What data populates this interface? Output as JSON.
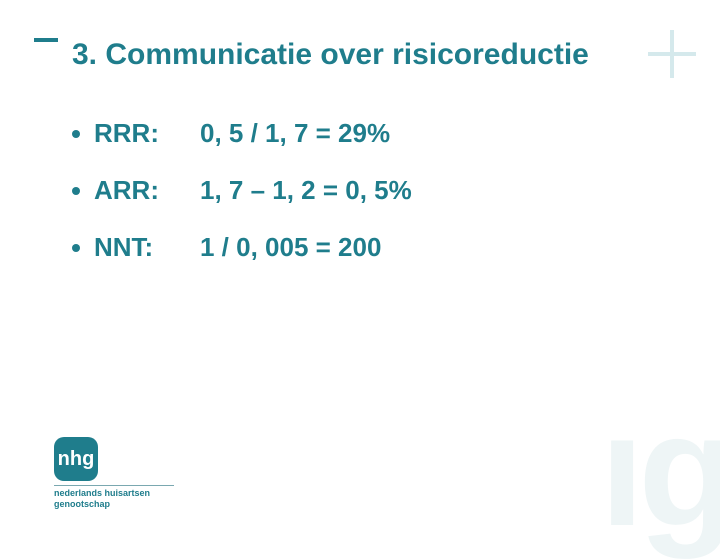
{
  "colors": {
    "accent": "#1f7d8c",
    "light_accent": "#d5e9ec",
    "watermark": "#eef5f6",
    "background": "#ffffff"
  },
  "title": "3. Communicatie over risicoreductie",
  "bullets": [
    {
      "label": "RRR:",
      "value": "0, 5 / 1, 7 = 29%"
    },
    {
      "label": "ARR:",
      "value": "1, 7 – 1, 2 = 0, 5%"
    },
    {
      "label": "NNT:",
      "value": "1 / 0, 005 = 200"
    }
  ],
  "logo": {
    "mark": "nhg",
    "line1": "nederlands huisartsen",
    "line2": "genootschap"
  },
  "watermark": "ıg"
}
